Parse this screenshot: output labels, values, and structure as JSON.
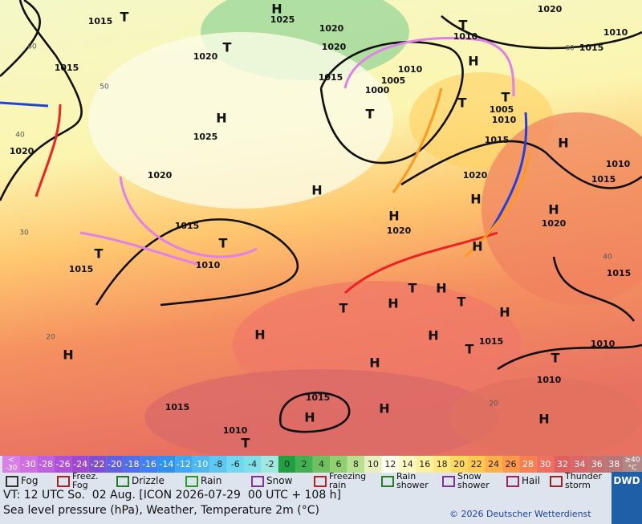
{
  "map": {
    "labels": [
      "1015",
      "H",
      "1025",
      "1020",
      "T",
      "1020",
      "1010",
      "T",
      "1010",
      "1015",
      "1015",
      "1020",
      "T",
      "1020",
      "1015",
      "1005",
      "1000",
      "1010",
      "H",
      "T",
      "H",
      "1025",
      "T",
      "1005",
      "1010",
      "T",
      "1015",
      "H",
      "1020",
      "1020",
      "1010",
      "1015",
      "H",
      "1020",
      "H",
      "H",
      "1020",
      "H",
      "1020",
      "1015",
      "T",
      "1010",
      "1015",
      "T",
      "H",
      "T",
      "H",
      "T",
      "H",
      "T",
      "H",
      "1015",
      "H",
      "H",
      "T",
      "1015",
      "1010",
      "H",
      "T",
      "1010",
      "H",
      "1015",
      "H",
      "H",
      "1015",
      "H",
      "1010",
      "T",
      "60",
      "50",
      "40",
      "30",
      "20",
      "60",
      "40",
      "20"
    ]
  },
  "scale": [
    {
      "label": "<",
      "label2": "-30",
      "color": "#d880e8"
    },
    {
      "label": "-30",
      "color": "#d070e0"
    },
    {
      "label": "-28",
      "color": "#c060e0"
    },
    {
      "label": "-26",
      "color": "#b050d8"
    },
    {
      "label": "-24",
      "color": "#a048d0"
    },
    {
      "label": "-22",
      "color": "#8050d0"
    },
    {
      "label": "-20",
      "color": "#6060e0"
    },
    {
      "label": "-18",
      "color": "#5070e8"
    },
    {
      "label": "-16",
      "color": "#4080f0"
    },
    {
      "label": "-14",
      "color": "#3090f0"
    },
    {
      "label": "-12",
      "color": "#40a8f0"
    },
    {
      "label": "-10",
      "color": "#50b8f0"
    },
    {
      "label": "-8",
      "color": "#60c8f0"
    },
    {
      "label": "-6",
      "color": "#70d8f0"
    },
    {
      "label": "-4",
      "color": "#80e0e8"
    },
    {
      "label": "-2",
      "color": "#a0e8e0"
    },
    {
      "label": "0",
      "color": "#20a040"
    },
    {
      "label": "2",
      "color": "#40b050"
    },
    {
      "label": "4",
      "color": "#70c060"
    },
    {
      "label": "6",
      "color": "#90d070"
    },
    {
      "label": "8",
      "color": "#b8e090"
    },
    {
      "label": "10",
      "color": "#e8f0c0"
    },
    {
      "label": "12",
      "color": "#fffff0"
    },
    {
      "label": "14",
      "color": "#fff8c0"
    },
    {
      "label": "16",
      "color": "#fff0a0"
    },
    {
      "label": "18",
      "color": "#ffe880"
    },
    {
      "label": "20",
      "color": "#ffd860"
    },
    {
      "label": "22",
      "color": "#ffc850"
    },
    {
      "label": "24",
      "color": "#ffb048"
    },
    {
      "label": "26",
      "color": "#ff9848"
    },
    {
      "label": "28",
      "color": "#f88050"
    },
    {
      "label": "30",
      "color": "#f07060"
    },
    {
      "label": "32",
      "color": "#e06060"
    },
    {
      "label": "34",
      "color": "#d86868"
    },
    {
      "label": "36",
      "color": "#c87070"
    },
    {
      "label": "38",
      "color": "#b87878"
    },
    {
      "label": "≥40",
      "label2": "°C",
      "color": "#b08888"
    }
  ],
  "legend": [
    "Fog",
    "Freez.\nFog",
    "Drizzle",
    "Rain",
    "Snow",
    "Freezing\nrain",
    "Rain\nshower",
    "Snow\nshower",
    "Hail",
    "Thunder\nstorm"
  ],
  "footer": {
    "valid_time": "VT: 12 UTC So.  02 Aug. [ICON 2026-07-29  00 UTC + 108 h]",
    "subtitle": "Sea level pressure (hPa), Weather, Temperature 2m (°C)",
    "copyright": "© 2026 Deutscher Wetterdienst",
    "logo": "DWD"
  }
}
